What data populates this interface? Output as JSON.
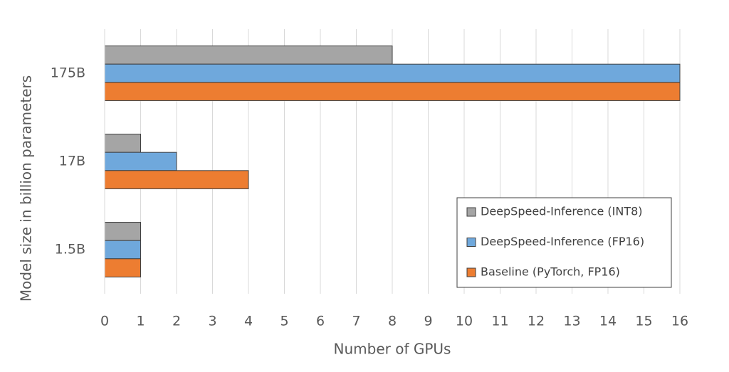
{
  "chart_data": {
    "type": "bar",
    "orientation": "horizontal",
    "xlabel": "Number of GPUs",
    "ylabel": "Model size in billion parameters",
    "categories": [
      "175B",
      "17B",
      "1.5B"
    ],
    "series": [
      {
        "name": "DeepSpeed-Inference (INT8)",
        "color": "#a5a5a5",
        "values": [
          8,
          1,
          1
        ]
      },
      {
        "name": "DeepSpeed-Inference (FP16)",
        "color": "#6fa8dc",
        "values": [
          16,
          2,
          1
        ]
      },
      {
        "name": "Baseline (PyTorch, FP16)",
        "color": "#ed7d31",
        "values": [
          16,
          4,
          1
        ]
      }
    ],
    "xlim": [
      0,
      16
    ],
    "xticks": [
      0,
      1,
      2,
      3,
      4,
      5,
      6,
      7,
      8,
      9,
      10,
      11,
      12,
      13,
      14,
      15,
      16
    ],
    "grid": true,
    "legend": "lower right"
  }
}
